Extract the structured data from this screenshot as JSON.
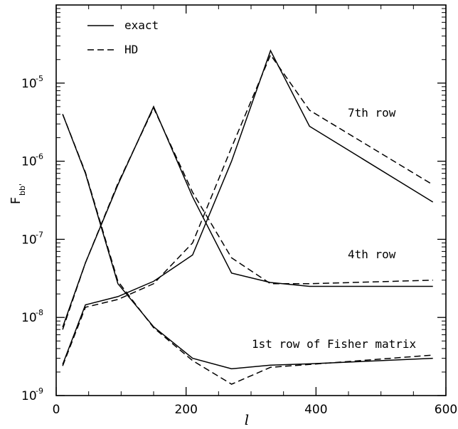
{
  "chart_data": {
    "type": "line",
    "xlabel": "l",
    "ylabel": "F",
    "ylabel_subscript": "bb'",
    "xlim": [
      0,
      600
    ],
    "ylim": [
      1e-09,
      0.0001
    ],
    "y_scale": "log",
    "x_ticks": [
      0,
      200,
      400,
      600
    ],
    "x_tick_labels": [
      "0",
      "200",
      "400",
      "600"
    ],
    "y_tick_exponents": [
      -9,
      -8,
      -7,
      -6,
      -5
    ],
    "y_tick_labels": [
      {
        "base": "10",
        "exp": "-9"
      },
      {
        "base": "10",
        "exp": "-8"
      },
      {
        "base": "10",
        "exp": "-7"
      },
      {
        "base": "10",
        "exp": "-6"
      },
      {
        "base": "10",
        "exp": "-5"
      }
    ],
    "legend": {
      "placement": "top-left",
      "entries": [
        {
          "label": "exact",
          "style": "solid"
        },
        {
          "label": "HD",
          "style": "dashed"
        }
      ]
    },
    "annotations": [
      {
        "text": "7th row",
        "x": 450,
        "y": 5.5e-06
      },
      {
        "text": "4th row",
        "x": 450,
        "y": 6.2e-08
      },
      {
        "text": "1st row of Fisher matrix",
        "x": 300,
        "y": 4.3e-09
      }
    ],
    "x": [
      10,
      45,
      95,
      150,
      210,
      270,
      330,
      390,
      580
    ],
    "rows": [
      {
        "row": "1st",
        "series": [
          {
            "name": "exact",
            "values": [
              4e-06,
              7e-07,
              2.7e-08,
              7.6e-09,
              3e-09,
              2.2e-09,
              2.45e-09,
              2.55e-09,
              3e-09
            ]
          },
          {
            "name": "HD",
            "values": [
              4e-06,
              7.2e-07,
              2.9e-08,
              7.4e-09,
              2.8e-09,
              1.4e-09,
              2.3e-09,
              2.5e-09,
              3.3e-09
            ]
          }
        ]
      },
      {
        "row": "4th",
        "series": [
          {
            "name": "exact",
            "values": [
              7.5e-09,
              5e-08,
              5e-07,
              5e-06,
              3.5e-07,
              3.7e-08,
              2.8e-08,
              2.5e-08,
              2.5e-08
            ]
          },
          {
            "name": "HD",
            "values": [
              7e-09,
              5e-08,
              5.2e-07,
              4.8e-06,
              4e-07,
              5.8e-08,
              2.7e-08,
              2.7e-08,
              3e-08
            ]
          }
        ]
      },
      {
        "row": "7th",
        "series": [
          {
            "name": "exact",
            "values": [
              2.5e-09,
              1.45e-08,
              1.85e-08,
              2.9e-08,
              6.3e-08,
              1e-06,
              2.6e-05,
              2.8e-06,
              3e-07
            ]
          },
          {
            "name": "HD",
            "values": [
              2.4e-09,
              1.35e-08,
              1.7e-08,
              2.7e-08,
              9e-08,
              1.5e-06,
              2.3e-05,
              4.5e-06,
              5e-07
            ]
          }
        ]
      }
    ]
  }
}
